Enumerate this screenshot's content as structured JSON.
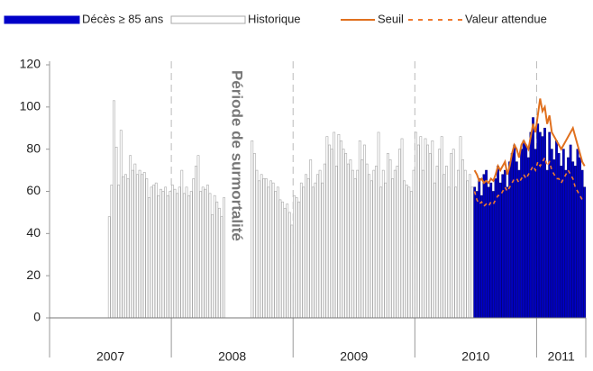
{
  "chart_data": {
    "type": "bar",
    "annotation": "Période de surmortalité",
    "legend": "top",
    "ylim": [
      0,
      120
    ],
    "yticks": [
      0,
      20,
      40,
      60,
      80,
      100,
      120
    ],
    "x_groups": [
      {
        "label": "2007",
        "weeks": 52
      },
      {
        "label": "2008",
        "weeks": 52
      },
      {
        "label": "2009",
        "weeks": 52
      },
      {
        "label": "2010",
        "weeks": 52
      },
      {
        "label": "2011",
        "weeks": 21
      }
    ],
    "categories": [
      null,
      null,
      null,
      null,
      null,
      null,
      null,
      null,
      null,
      null,
      null,
      null,
      null,
      null,
      null,
      null,
      null,
      null,
      null,
      null,
      null,
      null,
      null,
      null,
      null,
      null,
      null,
      null,
      null,
      null,
      null,
      null,
      null,
      null,
      null,
      null,
      null,
      null,
      null,
      null,
      null,
      null,
      null,
      null,
      null,
      null,
      null,
      null,
      null,
      null,
      null,
      null,
      null,
      null,
      null,
      null,
      null,
      null,
      null,
      null,
      null,
      null,
      null,
      null,
      null,
      null,
      null,
      null,
      null,
      null,
      null,
      null,
      null,
      null,
      null,
      null,
      null,
      null,
      null,
      null,
      null,
      null,
      null,
      null,
      null,
      null,
      null,
      null,
      null,
      null,
      null,
      null,
      null,
      null,
      null,
      null,
      null,
      null,
      null,
      null,
      null,
      null,
      null,
      null,
      null,
      null,
      null,
      null,
      null,
      null,
      null,
      null,
      null,
      null,
      null,
      null,
      null,
      null,
      null,
      null,
      null,
      null,
      null,
      null,
      null,
      null,
      null,
      null,
      null,
      null,
      null,
      null,
      null,
      null,
      null,
      null,
      null,
      null,
      null,
      null,
      null,
      null,
      null,
      null,
      null,
      null,
      null,
      null,
      null,
      null,
      null,
      null,
      null,
      null,
      null,
      null,
      null,
      null,
      null,
      null,
      null,
      null,
      null,
      null,
      null,
      null,
      null,
      null,
      null,
      null,
      null,
      null,
      null,
      null,
      null,
      null,
      null,
      null,
      null,
      null,
      null,
      null,
      null,
      null,
      null,
      null,
      null,
      null,
      null,
      null,
      null,
      null,
      null,
      null,
      null,
      null,
      null,
      null,
      null,
      null,
      null,
      null,
      null,
      null,
      null,
      null,
      null,
      null,
      null,
      null,
      null,
      null,
      null,
      null,
      null,
      null,
      null,
      null,
      null,
      null,
      null,
      null,
      null,
      null,
      null,
      null,
      null,
      null,
      null
    ],
    "series": [
      {
        "name": "Décès ≥ 85 ans",
        "kind": "bar",
        "color": "#0000c8",
        "values": [
          null,
          null,
          null,
          null,
          null,
          null,
          null,
          null,
          null,
          null,
          null,
          null,
          null,
          null,
          null,
          null,
          null,
          null,
          null,
          null,
          null,
          null,
          null,
          null,
          null,
          null,
          null,
          null,
          null,
          null,
          null,
          null,
          null,
          null,
          null,
          null,
          null,
          null,
          null,
          null,
          null,
          null,
          null,
          null,
          null,
          null,
          null,
          null,
          null,
          null,
          null,
          null,
          null,
          null,
          null,
          null,
          null,
          null,
          null,
          null,
          null,
          null,
          null,
          null,
          null,
          null,
          null,
          null,
          null,
          null,
          null,
          null,
          null,
          null,
          null,
          null,
          null,
          null,
          null,
          null,
          null,
          null,
          null,
          null,
          null,
          null,
          null,
          null,
          null,
          null,
          null,
          null,
          null,
          null,
          null,
          null,
          null,
          null,
          null,
          null,
          null,
          null,
          null,
          null,
          null,
          null,
          null,
          null,
          null,
          null,
          null,
          null,
          null,
          null,
          null,
          null,
          null,
          null,
          null,
          null,
          null,
          null,
          null,
          null,
          null,
          null,
          null,
          null,
          null,
          null,
          null,
          null,
          null,
          null,
          null,
          null,
          null,
          null,
          null,
          null,
          null,
          null,
          null,
          null,
          null,
          null,
          null,
          null,
          null,
          null,
          null,
          null,
          null,
          null,
          null,
          null,
          null,
          null,
          null,
          null,
          null,
          null,
          null,
          null,
          null,
          null,
          null,
          null,
          null,
          null,
          null,
          null,
          null,
          null,
          null,
          null,
          null,
          null,
          null,
          null,
          null,
          62,
          60,
          66,
          58,
          68,
          70,
          62,
          64,
          60,
          66,
          72,
          64,
          68,
          70,
          62,
          74,
          78,
          82,
          74,
          70,
          80,
          84,
          82,
          76,
          88,
          95,
          80,
          92,
          88,
          86,
          90,
          70,
          88,
          80,
          75,
          84,
          78,
          72,
          80,
          70,
          76,
          82,
          74,
          72,
          80,
          76,
          70,
          62
        ]
      },
      {
        "name": "Historique",
        "kind": "bar",
        "color": "#ffffff",
        "values": [
          null,
          null,
          null,
          null,
          null,
          null,
          null,
          null,
          null,
          null,
          null,
          null,
          null,
          null,
          null,
          null,
          null,
          null,
          null,
          null,
          null,
          null,
          null,
          null,
          null,
          48,
          63,
          103,
          81,
          63,
          89,
          67,
          68,
          66,
          77,
          70,
          73,
          68,
          70,
          68,
          69,
          66,
          57,
          62,
          63,
          64,
          58,
          61,
          60,
          62,
          58,
          60,
          63,
          61,
          59,
          62,
          70,
          59,
          62,
          58,
          60,
          66,
          72,
          77,
          60,
          62,
          61,
          63,
          59,
          49,
          58,
          55,
          52,
          48,
          57,
          null,
          null,
          null,
          null,
          null,
          null,
          null,
          null,
          null,
          null,
          null,
          84,
          78,
          70,
          65,
          68,
          66,
          66,
          62,
          65,
          64,
          60,
          62,
          56,
          55,
          52,
          54,
          50,
          44,
          58,
          57,
          55,
          64,
          62,
          68,
          66,
          75,
          62,
          64,
          68,
          70,
          64,
          73,
          86,
          82,
          80,
          88,
          72,
          87,
          84,
          80,
          78,
          73,
          75,
          70,
          66,
          70,
          84,
          75,
          82,
          73,
          68,
          65,
          70,
          72,
          88,
          62,
          70,
          64,
          78,
          75,
          66,
          70,
          72,
          80,
          85,
          65,
          63,
          62,
          60,
          70,
          88,
          82,
          86,
          70,
          85,
          82,
          78,
          84,
          64,
          72,
          80,
          86,
          68,
          72,
          62,
          78,
          80,
          62,
          70,
          86,
          75,
          70,
          65,
          68,
          62,
          null,
          null,
          null,
          null,
          null,
          null,
          null,
          null,
          null,
          null,
          null,
          null,
          null,
          null,
          null,
          null,
          null,
          null,
          null,
          null,
          null,
          null,
          null,
          null,
          null,
          null,
          null,
          null,
          null,
          null,
          null,
          null,
          null,
          null,
          null,
          null,
          null,
          null,
          null,
          null,
          null,
          null,
          null,
          null,
          null,
          null,
          null,
          null
        ]
      },
      {
        "name": "Seuil",
        "kind": "line",
        "color": "#e0701e",
        "values": [
          null,
          null,
          null,
          null,
          null,
          null,
          null,
          null,
          null,
          null,
          null,
          null,
          null,
          null,
          null,
          null,
          null,
          null,
          null,
          null,
          null,
          null,
          null,
          null,
          null,
          null,
          null,
          null,
          null,
          null,
          null,
          null,
          null,
          null,
          null,
          null,
          null,
          null,
          null,
          null,
          null,
          null,
          null,
          null,
          null,
          null,
          null,
          null,
          null,
          null,
          null,
          null,
          null,
          null,
          null,
          null,
          null,
          null,
          null,
          null,
          null,
          null,
          null,
          null,
          null,
          null,
          null,
          null,
          null,
          null,
          null,
          null,
          null,
          null,
          null,
          null,
          null,
          null,
          null,
          null,
          null,
          null,
          null,
          null,
          null,
          null,
          null,
          null,
          null,
          null,
          null,
          null,
          null,
          null,
          null,
          null,
          null,
          null,
          null,
          null,
          null,
          null,
          null,
          null,
          null,
          null,
          null,
          null,
          null,
          null,
          null,
          null,
          null,
          null,
          null,
          null,
          null,
          null,
          null,
          null,
          null,
          null,
          null,
          null,
          null,
          null,
          null,
          null,
          null,
          null,
          null,
          null,
          null,
          null,
          null,
          null,
          null,
          null,
          null,
          null,
          null,
          null,
          null,
          null,
          null,
          null,
          null,
          null,
          null,
          null,
          null,
          null,
          null,
          null,
          null,
          null,
          null,
          null,
          null,
          null,
          null,
          null,
          null,
          null,
          null,
          null,
          null,
          null,
          null,
          null,
          null,
          null,
          null,
          null,
          null,
          null,
          null,
          null,
          null,
          null,
          null,
          70,
          68,
          65,
          66,
          64,
          65,
          64,
          66,
          65,
          68,
          72,
          70,
          72,
          74,
          68,
          72,
          78,
          82,
          80,
          76,
          82,
          84,
          82,
          80,
          86,
          92,
          88,
          96,
          104,
          98,
          100,
          92,
          96,
          88,
          86,
          84,
          82,
          80,
          82,
          84,
          86,
          88,
          90,
          86,
          82,
          78,
          74,
          72
        ]
      },
      {
        "name": "Valeur attendue",
        "kind": "dashed",
        "color": "#f07a30",
        "values": [
          null,
          null,
          null,
          null,
          null,
          null,
          null,
          null,
          null,
          null,
          null,
          null,
          null,
          null,
          null,
          null,
          null,
          null,
          null,
          null,
          null,
          null,
          null,
          null,
          null,
          null,
          null,
          null,
          null,
          null,
          null,
          null,
          null,
          null,
          null,
          null,
          null,
          null,
          null,
          null,
          null,
          null,
          null,
          null,
          null,
          null,
          null,
          null,
          null,
          null,
          null,
          null,
          null,
          null,
          null,
          null,
          null,
          null,
          null,
          null,
          null,
          null,
          null,
          null,
          null,
          null,
          null,
          null,
          null,
          null,
          null,
          null,
          null,
          null,
          null,
          null,
          null,
          null,
          null,
          null,
          null,
          null,
          null,
          null,
          null,
          null,
          null,
          null,
          null,
          null,
          null,
          null,
          null,
          null,
          null,
          null,
          null,
          null,
          null,
          null,
          null,
          null,
          null,
          null,
          null,
          null,
          null,
          null,
          null,
          null,
          null,
          null,
          null,
          null,
          null,
          null,
          null,
          null,
          null,
          null,
          null,
          null,
          null,
          null,
          null,
          null,
          null,
          null,
          null,
          null,
          null,
          null,
          null,
          null,
          null,
          null,
          null,
          null,
          null,
          null,
          null,
          null,
          null,
          null,
          null,
          null,
          null,
          null,
          null,
          null,
          null,
          null,
          null,
          null,
          null,
          null,
          null,
          null,
          null,
          null,
          null,
          null,
          null,
          null,
          null,
          null,
          null,
          null,
          null,
          null,
          null,
          null,
          null,
          null,
          null,
          null,
          null,
          null,
          null,
          null,
          null,
          60,
          56,
          54,
          55,
          53,
          54,
          53,
          55,
          54,
          56,
          58,
          58,
          60,
          62,
          60,
          62,
          64,
          66,
          66,
          64,
          66,
          68,
          66,
          68,
          70,
          72,
          70,
          74,
          72,
          74,
          76,
          72,
          74,
          70,
          68,
          66,
          66,
          64,
          66,
          68,
          70,
          68,
          66,
          62,
          60,
          58,
          56,
          55
        ]
      }
    ]
  }
}
